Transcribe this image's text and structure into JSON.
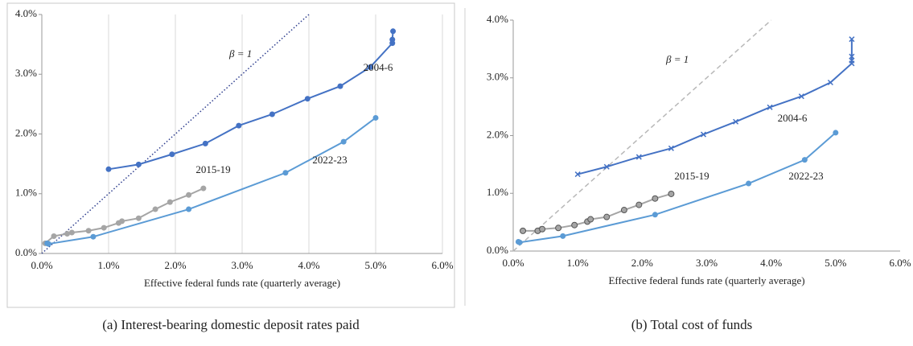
{
  "chart_data": [
    {
      "type": "line",
      "caption": "(a) Interest-bearing domestic deposit rates paid",
      "xlabel": "Effective federal funds rate (quarterly average)",
      "grid": true,
      "reference_label": "β = 1",
      "reference_style": "dotted",
      "reference_color": "#2f3f8f",
      "xlim": [
        0,
        6
      ],
      "ylim": [
        0,
        4
      ],
      "xticks": [
        {
          "value": 0,
          "label": "0.0%"
        },
        {
          "value": 1,
          "label": "1.0%"
        },
        {
          "value": 2,
          "label": "2.0%"
        },
        {
          "value": 3,
          "label": "3.0%"
        },
        {
          "value": 4,
          "label": "4.0%"
        },
        {
          "value": 5,
          "label": "5.0%"
        },
        {
          "value": 6,
          "label": "6.0%"
        }
      ],
      "yticks": [
        {
          "value": 0,
          "label": "0.0%"
        },
        {
          "value": 1,
          "label": "1.0%"
        },
        {
          "value": 2,
          "label": "2.0%"
        },
        {
          "value": 3,
          "label": "3.0%"
        },
        {
          "value": 4,
          "label": "4.0%"
        }
      ],
      "series": [
        {
          "name": "2004-6",
          "color": "#4472c4",
          "marker": "circle",
          "x": [
            1.0,
            1.45,
            1.95,
            2.45,
            2.95,
            3.45,
            3.98,
            4.47,
            4.92,
            5.25,
            5.25,
            5.26
          ],
          "values": [
            1.41,
            1.49,
            1.66,
            1.84,
            2.14,
            2.33,
            2.59,
            2.8,
            3.12,
            3.52,
            3.58,
            3.72
          ]
        },
        {
          "name": "2015-19",
          "color": "#a5a5a5",
          "marker": "circle",
          "x": [
            0.05,
            0.18,
            0.38,
            0.45,
            0.7,
            0.93,
            1.15,
            1.2,
            1.45,
            1.7,
            1.92,
            2.2,
            2.42
          ],
          "values": [
            0.17,
            0.29,
            0.33,
            0.35,
            0.38,
            0.43,
            0.51,
            0.54,
            0.59,
            0.74,
            0.86,
            0.98,
            1.09
          ]
        },
        {
          "name": "2022-23",
          "color": "#5b9bd5",
          "marker": "circle",
          "x": [
            0.08,
            0.1,
            0.77,
            2.2,
            3.65,
            4.52,
            5.0
          ],
          "values": [
            0.17,
            0.16,
            0.28,
            0.74,
            1.35,
            1.87,
            2.27
          ]
        }
      ]
    },
    {
      "type": "line",
      "caption": "(b) Total cost of funds",
      "xlabel": "Effective federal funds rate (quarterly average)",
      "grid": false,
      "reference_label": "β = 1",
      "reference_style": "dashed",
      "reference_color": "#b8b8b8",
      "xlim": [
        0,
        6
      ],
      "ylim": [
        0,
        4
      ],
      "xticks": [
        {
          "value": 0,
          "label": "0.0%"
        },
        {
          "value": 1,
          "label": "1.0%"
        },
        {
          "value": 2,
          "label": "2.0%"
        },
        {
          "value": 3,
          "label": "3.0%"
        },
        {
          "value": 4,
          "label": "4.0%"
        },
        {
          "value": 5,
          "label": "5.0%"
        },
        {
          "value": 6,
          "label": "6.0%"
        }
      ],
      "yticks": [
        {
          "value": 0,
          "label": "0.0%"
        },
        {
          "value": 1,
          "label": "1.0%"
        },
        {
          "value": 2,
          "label": "2.0%"
        },
        {
          "value": 3,
          "label": "3.0%"
        },
        {
          "value": 4,
          "label": "4.0%"
        }
      ],
      "series": [
        {
          "name": "2004-6",
          "color": "#4472c4",
          "marker": "x",
          "x": [
            1.0,
            1.45,
            1.95,
            2.45,
            2.95,
            3.45,
            3.98,
            4.47,
            4.92,
            5.25,
            5.25,
            5.25,
            5.25
          ],
          "values": [
            1.33,
            1.46,
            1.63,
            1.78,
            2.02,
            2.24,
            2.49,
            2.68,
            2.92,
            3.25,
            3.3,
            3.37,
            3.67
          ]
        },
        {
          "name": "2015-19",
          "color": "#a5a5a5",
          "marker": "circle",
          "x": [
            0.15,
            0.38,
            0.45,
            0.7,
            0.95,
            1.15,
            1.2,
            1.45,
            1.72,
            1.95,
            2.2,
            2.45
          ],
          "values": [
            0.35,
            0.35,
            0.38,
            0.4,
            0.45,
            0.51,
            0.55,
            0.59,
            0.71,
            0.8,
            0.91,
            0.99
          ]
        },
        {
          "name": "2022-23",
          "color": "#5b9bd5",
          "marker": "circle",
          "x": [
            0.08,
            0.1,
            0.77,
            2.2,
            3.65,
            4.52,
            5.0
          ],
          "values": [
            0.16,
            0.15,
            0.26,
            0.63,
            1.17,
            1.58,
            2.05
          ]
        }
      ]
    }
  ]
}
